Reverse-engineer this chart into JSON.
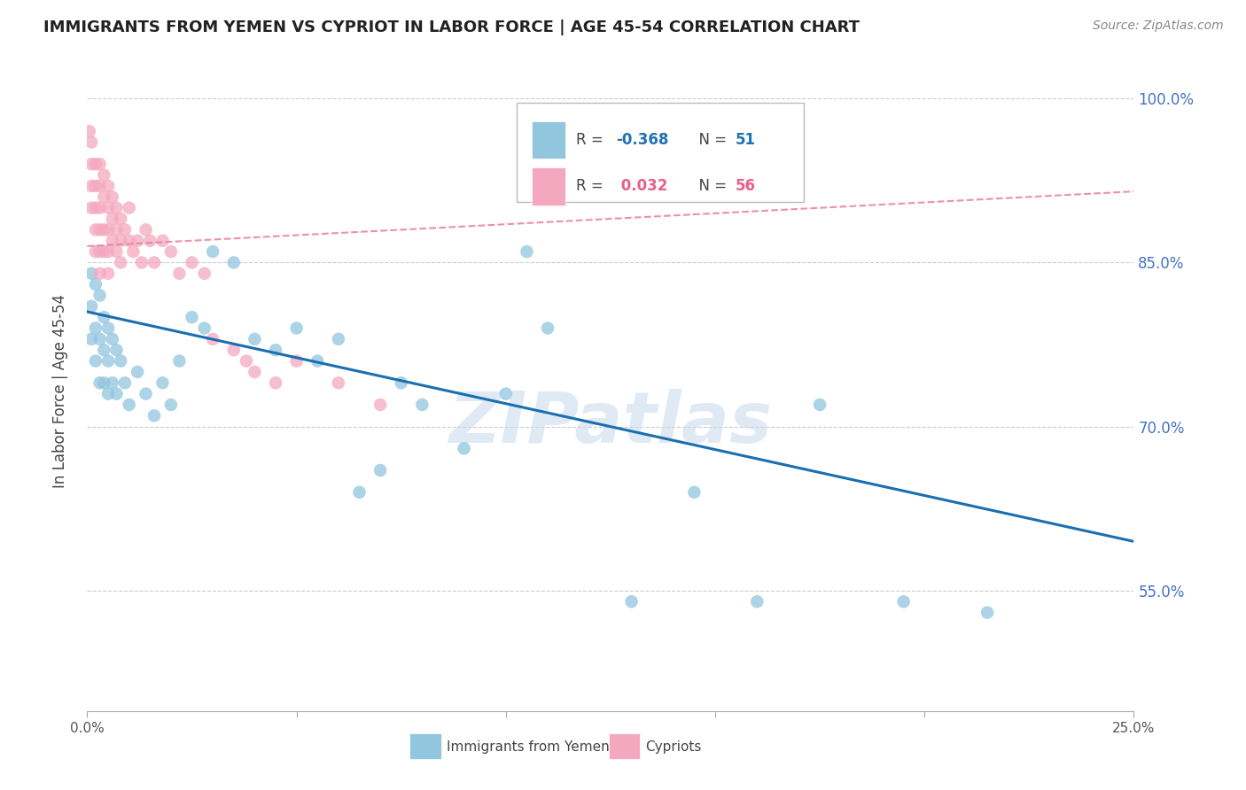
{
  "title": "IMMIGRANTS FROM YEMEN VS CYPRIOT IN LABOR FORCE | AGE 45-54 CORRELATION CHART",
  "source": "Source: ZipAtlas.com",
  "ylabel": "In Labor Force | Age 45-54",
  "xlim": [
    0.0,
    0.25
  ],
  "ylim": [
    0.44,
    1.025
  ],
  "yticks": [
    0.55,
    0.7,
    0.85,
    1.0
  ],
  "ytick_labels": [
    "55.0%",
    "70.0%",
    "85.0%",
    "100.0%"
  ],
  "xticks": [
    0.0,
    0.05,
    0.1,
    0.15,
    0.2,
    0.25
  ],
  "xtick_labels": [
    "0.0%",
    "",
    "",
    "",
    "",
    "25.0%"
  ],
  "legend_label1": "Immigrants from Yemen",
  "legend_label2": "Cypriots",
  "color_blue": "#92c5de",
  "color_pink": "#f4a8c0",
  "color_blue_line": "#1a6faf",
  "color_pink_line": "#e87ca0",
  "color_R_blue": "#2171b5",
  "color_R_pink": "#e8608a",
  "watermark": "ZIPatlas",
  "blue_line_x0": 0.0,
  "blue_line_y0": 0.805,
  "blue_line_x1": 0.25,
  "blue_line_y1": 0.595,
  "pink_line_x0": 0.0,
  "pink_line_y0": 0.865,
  "pink_line_x1": 0.25,
  "pink_line_y1": 0.915,
  "blue_x": [
    0.001,
    0.001,
    0.001,
    0.002,
    0.002,
    0.002,
    0.003,
    0.003,
    0.003,
    0.004,
    0.004,
    0.004,
    0.005,
    0.005,
    0.005,
    0.006,
    0.006,
    0.007,
    0.007,
    0.008,
    0.009,
    0.01,
    0.012,
    0.014,
    0.016,
    0.018,
    0.02,
    0.022,
    0.025,
    0.028,
    0.03,
    0.035,
    0.04,
    0.045,
    0.05,
    0.055,
    0.06,
    0.065,
    0.07,
    0.075,
    0.08,
    0.09,
    0.1,
    0.105,
    0.11,
    0.13,
    0.145,
    0.16,
    0.175,
    0.195,
    0.215
  ],
  "blue_y": [
    0.84,
    0.81,
    0.78,
    0.83,
    0.79,
    0.76,
    0.82,
    0.78,
    0.74,
    0.8,
    0.77,
    0.74,
    0.79,
    0.76,
    0.73,
    0.78,
    0.74,
    0.77,
    0.73,
    0.76,
    0.74,
    0.72,
    0.75,
    0.73,
    0.71,
    0.74,
    0.72,
    0.76,
    0.8,
    0.79,
    0.86,
    0.85,
    0.78,
    0.77,
    0.79,
    0.76,
    0.78,
    0.64,
    0.66,
    0.74,
    0.72,
    0.68,
    0.73,
    0.86,
    0.79,
    0.54,
    0.64,
    0.54,
    0.72,
    0.54,
    0.53
  ],
  "pink_x": [
    0.0005,
    0.001,
    0.001,
    0.001,
    0.001,
    0.002,
    0.002,
    0.002,
    0.002,
    0.002,
    0.003,
    0.003,
    0.003,
    0.003,
    0.003,
    0.003,
    0.004,
    0.004,
    0.004,
    0.004,
    0.005,
    0.005,
    0.005,
    0.005,
    0.005,
    0.006,
    0.006,
    0.006,
    0.007,
    0.007,
    0.007,
    0.008,
    0.008,
    0.008,
    0.009,
    0.01,
    0.01,
    0.011,
    0.012,
    0.013,
    0.014,
    0.015,
    0.016,
    0.018,
    0.02,
    0.022,
    0.025,
    0.028,
    0.03,
    0.035,
    0.038,
    0.04,
    0.045,
    0.05,
    0.06,
    0.07
  ],
  "pink_y": [
    0.97,
    0.94,
    0.92,
    0.9,
    0.96,
    0.94,
    0.92,
    0.9,
    0.88,
    0.86,
    0.94,
    0.92,
    0.9,
    0.88,
    0.86,
    0.84,
    0.93,
    0.91,
    0.88,
    0.86,
    0.92,
    0.9,
    0.88,
    0.86,
    0.84,
    0.91,
    0.89,
    0.87,
    0.9,
    0.88,
    0.86,
    0.89,
    0.87,
    0.85,
    0.88,
    0.9,
    0.87,
    0.86,
    0.87,
    0.85,
    0.88,
    0.87,
    0.85,
    0.87,
    0.86,
    0.84,
    0.85,
    0.84,
    0.78,
    0.77,
    0.76,
    0.75,
    0.74,
    0.76,
    0.74,
    0.72
  ]
}
